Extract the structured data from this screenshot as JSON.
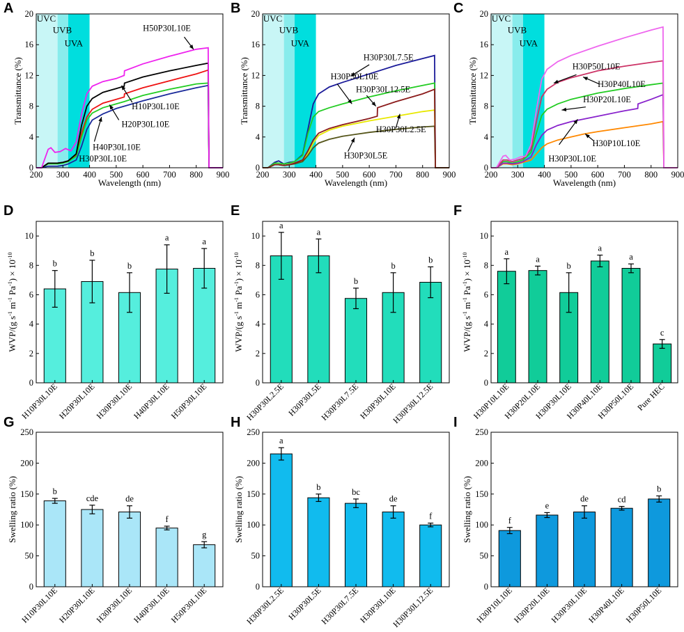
{
  "chart_data": [
    {
      "panel": "A",
      "type": "line",
      "xlabel": "Wavelength (nm)",
      "ylabel": "Transmittance (%)",
      "xlim": [
        200,
        900
      ],
      "ylim": [
        0,
        20
      ],
      "xticks": [
        200,
        300,
        400,
        500,
        600,
        700,
        800,
        900
      ],
      "yticks": [
        0,
        4,
        8,
        12,
        16,
        20
      ],
      "bands": [
        {
          "label": "UVC",
          "from": 200,
          "to": 280,
          "color": "#c8f6f6"
        },
        {
          "label": "UVB",
          "from": 280,
          "to": 320,
          "color": "#88ecec"
        },
        {
          "label": "UVA",
          "from": 320,
          "to": 400,
          "color": "#00dede"
        }
      ],
      "series": [
        {
          "name": "H10P30L10E",
          "color": "#ee1111",
          "x": [
            200,
            220,
            245,
            260,
            280,
            300,
            320,
            350,
            370,
            390,
            410,
            450,
            500,
            530,
            531,
            600,
            700,
            800,
            845,
            848,
            900
          ],
          "y": [
            0,
            0,
            0.6,
            0.6,
            0.6,
            0.7,
            0.9,
            1.6,
            4.5,
            6.6,
            7.6,
            8.4,
            8.9,
            9.2,
            9.6,
            10.4,
            11.3,
            12.2,
            12.7,
            0,
            0
          ]
        },
        {
          "name": "H20P30L10E",
          "color": "#22cc22",
          "x": [
            200,
            220,
            245,
            260,
            280,
            300,
            320,
            350,
            370,
            390,
            410,
            450,
            500,
            530,
            600,
            700,
            800,
            845,
            848,
            900
          ],
          "y": [
            0,
            0,
            0.5,
            0.5,
            0.5,
            0.6,
            0.8,
            1.5,
            4.0,
            6.2,
            7.1,
            7.8,
            8.3,
            8.6,
            9.4,
            10.2,
            10.9,
            11.0,
            0,
            0
          ]
        },
        {
          "name": "H30P30L10E",
          "color": "#1a2a9a",
          "x": [
            200,
            220,
            245,
            260,
            280,
            300,
            320,
            350,
            370,
            390,
            410,
            450,
            500,
            550,
            600,
            700,
            800,
            845,
            848,
            900
          ],
          "y": [
            0,
            0,
            0.2,
            0.2,
            0.2,
            0.3,
            0.5,
            1.0,
            2.8,
            5.0,
            6.2,
            7.0,
            7.7,
            8.2,
            8.7,
            9.6,
            10.4,
            10.7,
            0,
            0
          ]
        },
        {
          "name": "H40P30L10E",
          "color": "#000000",
          "x": [
            200,
            220,
            245,
            260,
            280,
            300,
            320,
            350,
            370,
            390,
            410,
            450,
            500,
            530,
            531,
            600,
            700,
            800,
            845,
            848,
            900
          ],
          "y": [
            0,
            0,
            0.6,
            0.6,
            0.6,
            0.7,
            0.9,
            1.8,
            5.5,
            8.0,
            9.0,
            9.8,
            10.3,
            10.6,
            11.0,
            11.8,
            12.6,
            13.3,
            13.6,
            0,
            0
          ]
        },
        {
          "name": "H50P30L10E",
          "color": "#ee22ee",
          "x": [
            200,
            220,
            245,
            255,
            270,
            290,
            310,
            330,
            350,
            370,
            390,
            410,
            450,
            500,
            530,
            531,
            600,
            700,
            800,
            845,
            848,
            900
          ],
          "y": [
            0,
            0,
            2.4,
            2.6,
            2.0,
            2.1,
            2.5,
            2.2,
            3.3,
            7.0,
            9.6,
            10.6,
            11.2,
            11.6,
            12.0,
            12.6,
            13.5,
            14.5,
            15.4,
            15.6,
            0,
            0
          ]
        }
      ],
      "labels": [
        "H50P30L10E",
        "H10P30L10E",
        "H20P30L10E",
        "H40P30L10E",
        "H30P30L10E"
      ],
      "band_labels": [
        "UVC",
        "UVB",
        "UVA"
      ]
    },
    {
      "panel": "B",
      "type": "line",
      "xlabel": "Wavelength (nm)",
      "ylabel": "Transmittance (%)",
      "xlim": [
        200,
        900
      ],
      "ylim": [
        0,
        20
      ],
      "xticks": [
        200,
        300,
        400,
        500,
        600,
        700,
        800,
        900
      ],
      "yticks": [
        0,
        4,
        8,
        12,
        16,
        20
      ],
      "bands": [
        {
          "label": "UVC",
          "from": 200,
          "to": 280,
          "color": "#c8f6f6"
        },
        {
          "label": "UVB",
          "from": 280,
          "to": 320,
          "color": "#88ecec"
        },
        {
          "label": "UVA",
          "from": 320,
          "to": 400,
          "color": "#00dede"
        }
      ],
      "series": [
        {
          "name": "H30P30L2.5E",
          "color": "#e8e800",
          "x": [
            200,
            220,
            245,
            260,
            280,
            300,
            320,
            350,
            370,
            390,
            410,
            450,
            500,
            600,
            700,
            800,
            845,
            848,
            900
          ],
          "y": [
            0,
            0,
            0.4,
            0.4,
            0.3,
            0.4,
            0.6,
            0.9,
            1.8,
            3.2,
            4.2,
            4.9,
            5.4,
            6.1,
            6.7,
            7.3,
            7.5,
            0,
            0
          ]
        },
        {
          "name": "H30P30L5E",
          "color": "#55551a",
          "x": [
            200,
            220,
            245,
            260,
            280,
            300,
            320,
            350,
            370,
            390,
            410,
            450,
            500,
            600,
            700,
            800,
            845,
            848,
            900
          ],
          "y": [
            0,
            0,
            0.4,
            0.4,
            0.3,
            0.4,
            0.5,
            0.8,
            1.6,
            2.6,
            3.2,
            3.7,
            4.1,
            4.6,
            5.0,
            5.3,
            5.4,
            0,
            0
          ]
        },
        {
          "name": "H30P30L7.5E",
          "color": "#1a1a99",
          "x": [
            200,
            220,
            245,
            260,
            280,
            300,
            320,
            350,
            370,
            390,
            410,
            450,
            500,
            600,
            700,
            800,
            845,
            848,
            900
          ],
          "y": [
            0,
            0,
            0.7,
            0.9,
            0.5,
            0.7,
            0.8,
            1.7,
            5.0,
            8.3,
            9.6,
            10.5,
            11.1,
            12.2,
            13.3,
            14.2,
            14.6,
            0,
            0
          ]
        },
        {
          "name": "H30P30L10E",
          "color": "#22cc22",
          "x": [
            200,
            220,
            245,
            260,
            280,
            300,
            320,
            350,
            370,
            390,
            410,
            450,
            500,
            600,
            700,
            800,
            845,
            848,
            900
          ],
          "y": [
            0,
            0,
            0.6,
            0.6,
            0.5,
            0.6,
            0.8,
            1.6,
            4.5,
            6.6,
            7.3,
            7.8,
            8.3,
            9.2,
            10.0,
            10.7,
            11.0,
            0,
            0
          ]
        },
        {
          "name": "H30P30L12.5E",
          "color": "#8b1a1a",
          "x": [
            200,
            220,
            245,
            260,
            280,
            300,
            320,
            350,
            370,
            390,
            410,
            450,
            500,
            600,
            630,
            631,
            700,
            800,
            845,
            848,
            900
          ],
          "y": [
            0,
            0,
            0.4,
            0.4,
            0.3,
            0.4,
            0.6,
            1.0,
            2.2,
            3.6,
            4.5,
            5.1,
            5.6,
            6.4,
            6.7,
            7.8,
            8.6,
            9.6,
            10.2,
            0,
            0
          ]
        }
      ],
      "labels": [
        "H30P30L7.5E",
        "H30P30L10E",
        "H30P30L12.5E",
        "H30P30L2.5E",
        "H30P30L5E"
      ],
      "band_labels": [
        "UVC",
        "UVB",
        "UVA"
      ]
    },
    {
      "panel": "C",
      "type": "line",
      "xlabel": "Wavelength (nm)",
      "ylabel": "Transmittance (%)",
      "xlim": [
        200,
        900
      ],
      "ylim": [
        0,
        20
      ],
      "xticks": [
        200,
        300,
        400,
        500,
        600,
        700,
        800,
        900
      ],
      "yticks": [
        0,
        4,
        8,
        12,
        16,
        20
      ],
      "bands": [
        {
          "label": "UVC",
          "from": 200,
          "to": 280,
          "color": "#c8f6f6"
        },
        {
          "label": "UVB",
          "from": 280,
          "to": 320,
          "color": "#88ecec"
        },
        {
          "label": "UVA",
          "from": 320,
          "to": 400,
          "color": "#00dede"
        }
      ],
      "series": [
        {
          "name": "H30P10L10E",
          "color": "#ff8800",
          "x": [
            200,
            220,
            245,
            260,
            280,
            300,
            320,
            350,
            370,
            390,
            410,
            450,
            500,
            550,
            600,
            700,
            800,
            845,
            848,
            900
          ],
          "y": [
            0,
            0,
            0.5,
            0.5,
            0.4,
            0.5,
            0.7,
            1.0,
            1.8,
            2.6,
            3.1,
            3.6,
            4.0,
            4.4,
            4.7,
            5.2,
            5.7,
            6.0,
            0,
            0
          ]
        },
        {
          "name": "H30P20L10E",
          "color": "#22cc22",
          "x": [
            200,
            220,
            245,
            260,
            280,
            300,
            320,
            350,
            370,
            390,
            410,
            450,
            500,
            600,
            700,
            800,
            845,
            848,
            900
          ],
          "y": [
            0,
            0,
            0.8,
            0.8,
            0.6,
            0.8,
            1.0,
            2.0,
            4.5,
            6.8,
            7.6,
            8.3,
            8.9,
            9.7,
            10.3,
            10.8,
            11.0,
            0,
            0
          ]
        },
        {
          "name": "H30P30L10E",
          "color": "#8822cc",
          "x": [
            200,
            220,
            245,
            260,
            280,
            300,
            320,
            350,
            370,
            390,
            410,
            450,
            500,
            600,
            700,
            750,
            751,
            800,
            845,
            848,
            900
          ],
          "y": [
            0,
            0,
            0.6,
            0.6,
            0.5,
            0.6,
            0.8,
            1.4,
            3.0,
            4.2,
            4.9,
            5.5,
            6.0,
            6.7,
            7.4,
            7.7,
            8.3,
            8.9,
            9.5,
            0,
            0
          ]
        },
        {
          "name": "H30P40L10E",
          "color": "#cc3366",
          "x": [
            200,
            220,
            245,
            260,
            280,
            300,
            320,
            350,
            370,
            390,
            410,
            450,
            500,
            600,
            700,
            800,
            845,
            848,
            900
          ],
          "y": [
            0,
            0,
            1.0,
            1.0,
            0.8,
            1.0,
            1.2,
            2.4,
            6.0,
            9.2,
            10.2,
            11.1,
            11.7,
            12.6,
            13.2,
            13.7,
            13.9,
            0,
            0
          ]
        },
        {
          "name": "H30P50L10E",
          "color": "#ee66ee",
          "x": [
            200,
            220,
            245,
            255,
            270,
            290,
            310,
            330,
            350,
            370,
            390,
            410,
            450,
            500,
            600,
            700,
            800,
            845,
            848,
            900
          ],
          "y": [
            0,
            0,
            1.5,
            1.6,
            1.0,
            1.1,
            1.4,
            1.5,
            3.0,
            7.5,
            11.5,
            12.8,
            13.8,
            14.6,
            15.8,
            16.9,
            17.9,
            18.3,
            0,
            0
          ]
        }
      ],
      "labels": [
        "H30P50L10E",
        "H30P40L10E",
        "H30P20L10E",
        "H30P30L10E",
        "H30P10L10E"
      ],
      "band_labels": [
        "UVC",
        "UVB",
        "UVA"
      ]
    },
    {
      "panel": "D",
      "type": "bar",
      "ylabel_main": "WVP/(g s",
      "ylabel_parts": [
        "-1",
        " m",
        "-1",
        " Pa",
        "-1",
        ") × 10",
        "-10"
      ],
      "ylim": [
        0,
        11
      ],
      "yticks": [
        0,
        2,
        4,
        6,
        8,
        10
      ],
      "color": "#55eedd",
      "categories": [
        "H10P30L10E",
        "H20P30L10E",
        "H30P30L10E",
        "H40P30L10E",
        "H50P30L10E"
      ],
      "values": [
        6.4,
        6.9,
        6.15,
        7.75,
        7.8
      ],
      "errors": [
        1.25,
        1.45,
        1.35,
        1.65,
        1.35
      ],
      "letters": [
        "b",
        "b",
        "b",
        "a",
        "a"
      ]
    },
    {
      "panel": "E",
      "type": "bar",
      "ylabel_main": "WVP/(g s",
      "ylabel_parts": [
        "-1",
        " m",
        "-1",
        " Pa",
        "-1",
        ") × 10",
        "-10"
      ],
      "ylim": [
        0,
        11
      ],
      "yticks": [
        0,
        2,
        4,
        6,
        8,
        10
      ],
      "color": "#22ddbb",
      "categories": [
        "H30P30L2.5E",
        "H30P30L5E",
        "H30P30L7.5E",
        "H30P30L10E",
        "H30P30L12.5E"
      ],
      "values": [
        8.65,
        8.65,
        5.75,
        6.15,
        6.85
      ],
      "errors": [
        1.6,
        1.15,
        0.7,
        1.35,
        1.05
      ],
      "letters": [
        "a",
        "a",
        "b",
        "b",
        "b"
      ]
    },
    {
      "panel": "F",
      "type": "bar",
      "ylabel_main": "WVP/(g s",
      "ylabel_parts": [
        "-1",
        " m",
        "-1",
        " Pa",
        "-1",
        ") × 10",
        "-10"
      ],
      "ylim": [
        0,
        11
      ],
      "yticks": [
        0,
        2,
        4,
        6,
        8,
        10
      ],
      "color": "#11cc99",
      "categories": [
        "H30P10L10E",
        "H30P20L10E",
        "H30P30L10E",
        "H30P40L10E",
        "H30P50L10E",
        "Pure HEC"
      ],
      "values": [
        7.6,
        7.65,
        6.15,
        8.3,
        7.8,
        2.65
      ],
      "errors": [
        0.85,
        0.3,
        1.35,
        0.4,
        0.3,
        0.3
      ],
      "letters": [
        "a",
        "a",
        "b",
        "a",
        "a",
        "c"
      ]
    },
    {
      "panel": "G",
      "type": "bar",
      "ylabel": "Swelling ratio (%)",
      "ylim": [
        0,
        250
      ],
      "yticks": [
        0,
        50,
        100,
        150,
        200,
        250
      ],
      "color": "#aae6f8",
      "categories": [
        "H10P30L10E",
        "H20P30L10E",
        "H30P30L10E",
        "H40P30L10E",
        "H50P30L10E"
      ],
      "values": [
        139,
        125,
        121,
        95,
        68
      ],
      "errors": [
        4,
        7,
        10,
        3,
        5
      ],
      "letters": [
        "b",
        "cde",
        "de",
        "f",
        "g"
      ]
    },
    {
      "panel": "H",
      "type": "bar",
      "ylabel": "Swelling ratio (%)",
      "ylim": [
        0,
        250
      ],
      "yticks": [
        0,
        50,
        100,
        150,
        200,
        250
      ],
      "color": "#11bbee",
      "categories": [
        "H30P30L2.5E",
        "H30P30L5E",
        "H30P30L7.5E",
        "H30P30L10E",
        "H30P30L12.5E"
      ],
      "values": [
        215,
        144,
        135,
        121,
        100
      ],
      "errors": [
        10,
        6,
        7,
        10,
        3
      ],
      "letters": [
        "a",
        "b",
        "bc",
        "de",
        "f"
      ]
    },
    {
      "panel": "I",
      "type": "bar",
      "ylabel": "Swelling ratio (%)",
      "ylim": [
        0,
        250
      ],
      "yticks": [
        0,
        50,
        100,
        150,
        200,
        250
      ],
      "color": "#0e99dd",
      "categories": [
        "H30P10L10E",
        "H30P20L10E",
        "H30P30L10E",
        "H30P40L10E",
        "H30P50L10E"
      ],
      "values": [
        91,
        116,
        121,
        127,
        142
      ],
      "errors": [
        5,
        4,
        10,
        3,
        5
      ],
      "letters": [
        "f",
        "e",
        "de",
        "cd",
        "b"
      ]
    }
  ]
}
